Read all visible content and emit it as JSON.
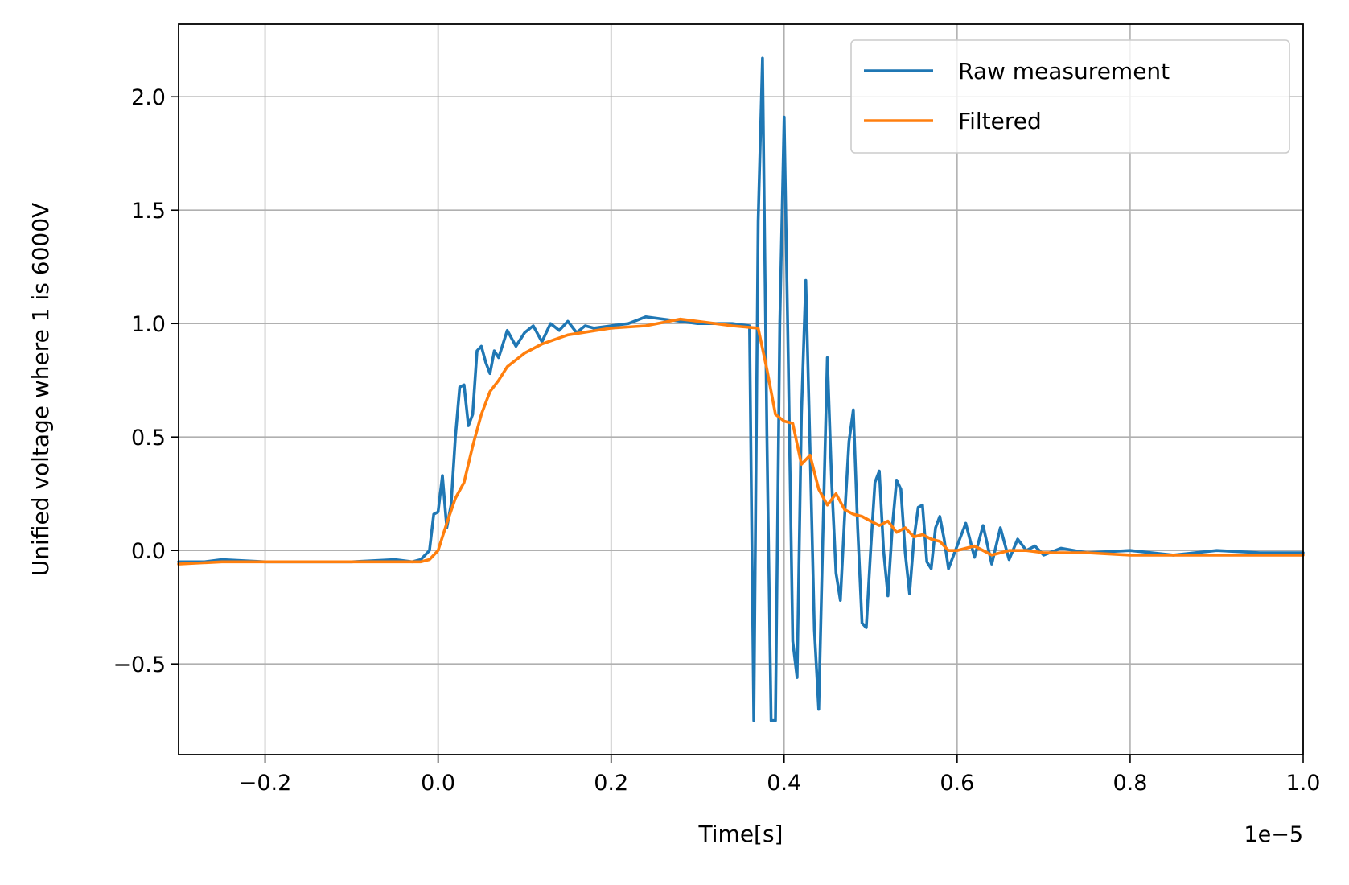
{
  "chart_data": {
    "type": "line",
    "title": "",
    "xlabel": "Time[s]",
    "ylabel": "Unified voltage where 1 is 6000V",
    "x_offset_label": "1e−5",
    "xlim": [
      -0.3,
      1.0
    ],
    "ylim": [
      -0.9,
      2.32
    ],
    "x_ticks": [
      -0.2,
      0.0,
      0.2,
      0.4,
      0.6,
      0.8,
      1.0
    ],
    "x_tick_labels": [
      "−0.2",
      "0.0",
      "0.2",
      "0.4",
      "0.6",
      "0.8",
      "1.0"
    ],
    "y_ticks": [
      -0.5,
      0.0,
      0.5,
      1.0,
      1.5,
      2.0
    ],
    "y_tick_labels": [
      "−0.5",
      "0.0",
      "0.5",
      "1.0",
      "1.5",
      "2.0"
    ],
    "grid": true,
    "legend_position": "top-right",
    "series": [
      {
        "name": "Raw measurement",
        "color": "#1f77b4",
        "x": [
          -0.3,
          -0.27,
          -0.25,
          -0.2,
          -0.15,
          -0.1,
          -0.05,
          -0.03,
          -0.02,
          -0.01,
          -0.005,
          0.0,
          0.005,
          0.01,
          0.015,
          0.02,
          0.025,
          0.03,
          0.035,
          0.04,
          0.045,
          0.05,
          0.055,
          0.06,
          0.065,
          0.07,
          0.08,
          0.09,
          0.1,
          0.11,
          0.12,
          0.13,
          0.14,
          0.15,
          0.16,
          0.17,
          0.18,
          0.2,
          0.22,
          0.24,
          0.26,
          0.28,
          0.3,
          0.32,
          0.34,
          0.36,
          0.365,
          0.37,
          0.375,
          0.38,
          0.385,
          0.39,
          0.395,
          0.4,
          0.405,
          0.41,
          0.415,
          0.42,
          0.425,
          0.43,
          0.435,
          0.44,
          0.445,
          0.45,
          0.455,
          0.46,
          0.465,
          0.47,
          0.475,
          0.48,
          0.485,
          0.49,
          0.495,
          0.5,
          0.505,
          0.51,
          0.515,
          0.52,
          0.525,
          0.53,
          0.535,
          0.54,
          0.545,
          0.55,
          0.555,
          0.56,
          0.565,
          0.57,
          0.575,
          0.58,
          0.585,
          0.59,
          0.6,
          0.61,
          0.62,
          0.63,
          0.64,
          0.65,
          0.66,
          0.67,
          0.68,
          0.69,
          0.7,
          0.72,
          0.75,
          0.8,
          0.85,
          0.9,
          0.95,
          1.0
        ],
        "y": [
          -0.05,
          -0.05,
          -0.04,
          -0.05,
          -0.05,
          -0.05,
          -0.04,
          -0.05,
          -0.04,
          0.0,
          0.16,
          0.17,
          0.33,
          0.1,
          0.2,
          0.5,
          0.72,
          0.73,
          0.55,
          0.6,
          0.88,
          0.9,
          0.83,
          0.78,
          0.88,
          0.85,
          0.97,
          0.9,
          0.96,
          0.99,
          0.92,
          1.0,
          0.97,
          1.01,
          0.96,
          0.99,
          0.98,
          0.99,
          1.0,
          1.03,
          1.02,
          1.01,
          1.0,
          1.0,
          1.0,
          0.99,
          -0.75,
          1.45,
          2.17,
          0.53,
          -0.75,
          -0.75,
          1.0,
          1.91,
          0.8,
          -0.4,
          -0.56,
          0.6,
          1.19,
          0.45,
          -0.35,
          -0.7,
          0.1,
          0.85,
          0.3,
          -0.1,
          -0.22,
          0.15,
          0.48,
          0.62,
          0.1,
          -0.32,
          -0.34,
          0.0,
          0.3,
          0.35,
          0.0,
          -0.2,
          0.1,
          0.31,
          0.27,
          -0.01,
          -0.19,
          0.05,
          0.19,
          0.2,
          -0.05,
          -0.08,
          0.1,
          0.15,
          0.05,
          -0.08,
          0.02,
          0.12,
          -0.03,
          0.11,
          -0.06,
          0.1,
          -0.04,
          0.05,
          0.0,
          0.02,
          -0.02,
          0.01,
          -0.01,
          0.0,
          -0.02,
          0.0,
          -0.01,
          -0.01
        ]
      },
      {
        "name": "Filtered",
        "color": "#ff7f0e",
        "x": [
          -0.3,
          -0.25,
          -0.2,
          -0.15,
          -0.1,
          -0.05,
          -0.02,
          -0.01,
          0.0,
          0.01,
          0.02,
          0.03,
          0.04,
          0.05,
          0.06,
          0.07,
          0.08,
          0.1,
          0.12,
          0.15,
          0.2,
          0.24,
          0.28,
          0.3,
          0.34,
          0.37,
          0.38,
          0.39,
          0.4,
          0.41,
          0.42,
          0.43,
          0.44,
          0.45,
          0.46,
          0.47,
          0.48,
          0.49,
          0.5,
          0.51,
          0.52,
          0.53,
          0.54,
          0.55,
          0.56,
          0.57,
          0.58,
          0.59,
          0.6,
          0.62,
          0.64,
          0.66,
          0.68,
          0.7,
          0.75,
          0.8,
          0.9,
          1.0
        ],
        "y": [
          -0.06,
          -0.05,
          -0.05,
          -0.05,
          -0.05,
          -0.05,
          -0.05,
          -0.04,
          0.0,
          0.12,
          0.23,
          0.3,
          0.46,
          0.6,
          0.7,
          0.75,
          0.81,
          0.87,
          0.91,
          0.95,
          0.98,
          0.99,
          1.02,
          1.01,
          0.99,
          0.98,
          0.8,
          0.6,
          0.57,
          0.56,
          0.38,
          0.42,
          0.27,
          0.2,
          0.25,
          0.18,
          0.16,
          0.15,
          0.13,
          0.11,
          0.13,
          0.08,
          0.1,
          0.06,
          0.07,
          0.05,
          0.04,
          0.0,
          0.0,
          0.02,
          -0.02,
          0.0,
          0.0,
          -0.01,
          -0.01,
          -0.02,
          -0.02,
          -0.02
        ]
      }
    ]
  }
}
